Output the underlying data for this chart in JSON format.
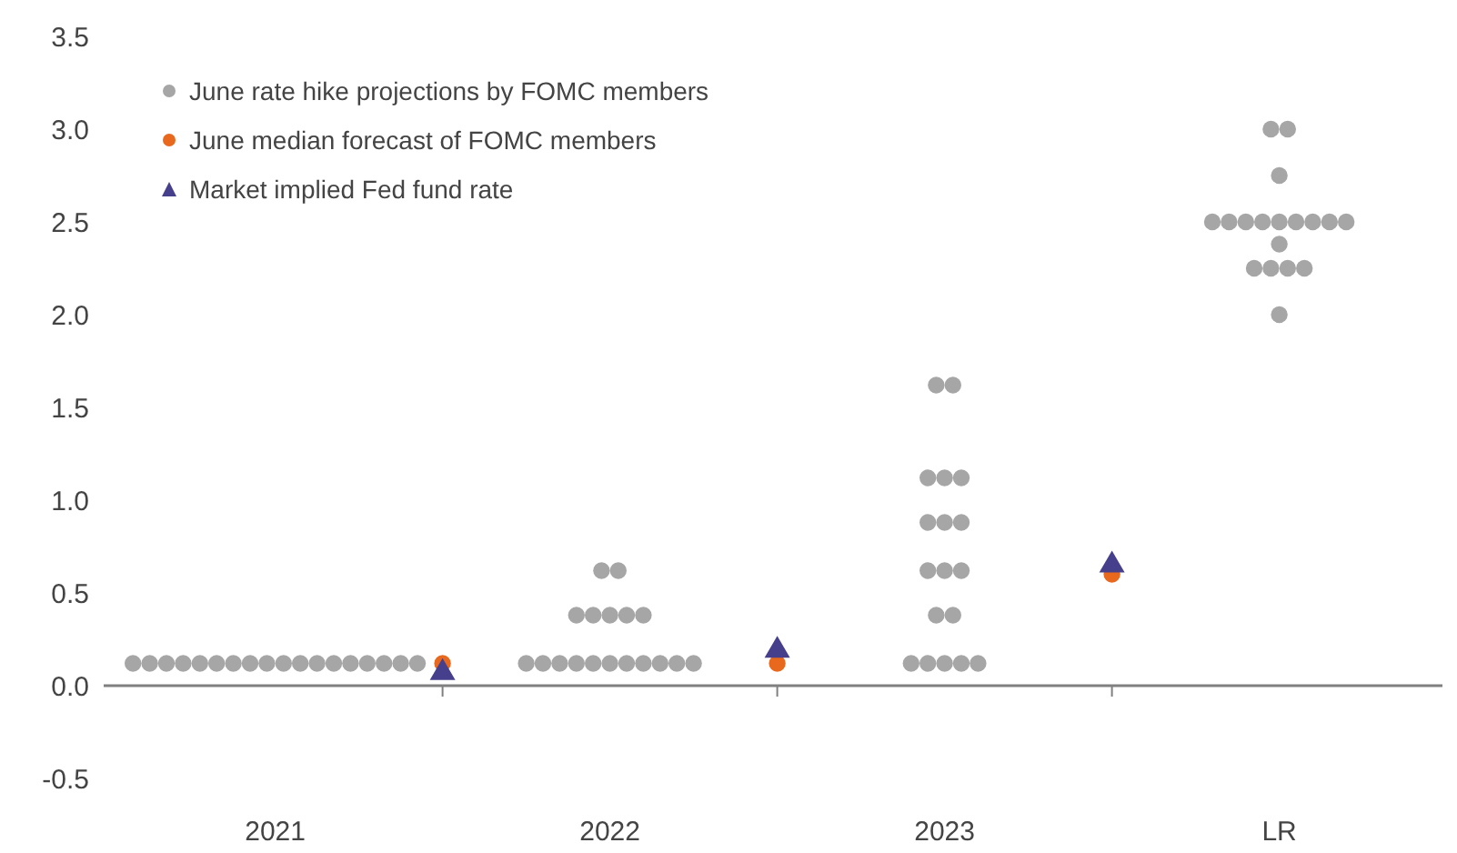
{
  "chart_data": {
    "type": "scatter",
    "categories": [
      null,
      null,
      null,
      null,
      null,
      null,
      null,
      null,
      null,
      null,
      null,
      null,
      null,
      null,
      null,
      null,
      null,
      null,
      null,
      null,
      "2021",
      null,
      null,
      null,
      null,
      null,
      null,
      null,
      null,
      null,
      null,
      null,
      null,
      null,
      null,
      null,
      null,
      null,
      null,
      null,
      null,
      null,
      null,
      null,
      null,
      null,
      null,
      null,
      null,
      null,
      null,
      null,
      null,
      null,
      null,
      null,
      null,
      null,
      null,
      null,
      "2022",
      null,
      null,
      null,
      null,
      null,
      null,
      null,
      null,
      null,
      null,
      null,
      null,
      null,
      null,
      null,
      null,
      null,
      null,
      null,
      null,
      null,
      null,
      null,
      null,
      null,
      null,
      null,
      null,
      null,
      null,
      null,
      null,
      null,
      null,
      null,
      null,
      null,
      null,
      null,
      "2023",
      null,
      null,
      null,
      null,
      null,
      null,
      null,
      null,
      null,
      null,
      null,
      null,
      null,
      null,
      null,
      null,
      null,
      null,
      null,
      null,
      null,
      null,
      null,
      null,
      null,
      null,
      null,
      null,
      null,
      null,
      null,
      null,
      null,
      null,
      null,
      null,
      null,
      null,
      null,
      "LR",
      null,
      null,
      null,
      null,
      null,
      null,
      null,
      null,
      null,
      null,
      null,
      null,
      null,
      null,
      null,
      null,
      null,
      null,
      null
    ],
    "ylim": [
      -0.5,
      3.5
    ],
    "yticks": [
      -0.5,
      {
        "value": 0,
        "label": "0.0"
      },
      0.5,
      {
        "value": 1,
        "label": "1.0"
      },
      1.5,
      {
        "value": 2,
        "label": "2.0"
      },
      2.5,
      {
        "value": 3,
        "label": "3.0"
      },
      3.5
    ],
    "grid": false,
    "legend": "top left",
    "ref_lines": [
      {
        "axis": "y",
        "value": 0,
        "color": "#808080"
      }
    ],
    "series": [
      {
        "name": "June rate hike projections by FOMC members",
        "color": "#a6a6a6",
        "marker": "circle",
        "values": [
          null,
          null,
          null,
          0.12,
          null,
          0.12,
          null,
          0.12,
          null,
          0.12,
          null,
          0.12,
          null,
          0.12,
          null,
          0.12,
          null,
          0.12,
          null,
          0.12,
          null,
          0.12,
          null,
          0.12,
          null,
          0.12,
          null,
          0.12,
          null,
          0.12,
          null,
          0.12,
          null,
          0.12,
          null,
          0.12,
          null,
          0.12,
          null,
          null,
          null,
          null,
          null,
          null,
          null,
          null,
          null,
          null,
          null,
          null,
          0.12,
          null,
          0.12,
          null,
          0.12,
          null,
          0.12,
          null,
          0.12,
          0.62,
          0.12,
          0.62,
          0.12,
          null,
          0.12,
          null,
          0.12,
          null,
          0.12,
          null,
          0.12,
          null,
          null,
          null,
          null,
          null,
          null,
          null,
          null,
          null,
          null,
          null,
          null,
          null,
          null,
          null,
          null,
          null,
          null,
          null,
          null,
          null,
          null,
          null,
          null,
          null,
          0.12,
          null,
          0.12,
          0.38,
          0.12,
          0.38,
          0.12,
          null,
          0.12,
          null,
          null,
          null,
          null,
          null,
          null,
          null,
          null,
          null,
          null,
          null,
          null,
          null,
          null,
          null,
          null,
          null,
          null,
          null,
          null,
          null,
          null,
          null,
          null,
          null,
          null,
          null,
          2.5,
          null,
          2.5,
          null,
          2.5,
          2.25,
          2.5,
          2.25,
          2.0,
          2.25,
          2.5,
          2.25,
          2.5,
          null,
          2.5,
          null,
          2.5,
          null,
          null,
          null,
          null,
          null,
          null,
          null,
          null,
          null,
          null,
          null
        ]
      },
      {
        "color": "#a6a6a6",
        "marker": "circle",
        "values": [
          null,
          null,
          null,
          null,
          null,
          null,
          null,
          null,
          null,
          null,
          null,
          null,
          null,
          null,
          null,
          null,
          null,
          null,
          null,
          null,
          null,
          null,
          null,
          null,
          null,
          null,
          null,
          null,
          null,
          null,
          null,
          null,
          null,
          null,
          null,
          null,
          null,
          null,
          null,
          null,
          null,
          null,
          null,
          null,
          null,
          null,
          null,
          null,
          null,
          null,
          null,
          null,
          null,
          null,
          null,
          null,
          0.38,
          null,
          0.38,
          null,
          0.38,
          null,
          0.38,
          null,
          0.38,
          null,
          null,
          null,
          null,
          null,
          null,
          null,
          null,
          null,
          null,
          null,
          null,
          null,
          null,
          null,
          null,
          null,
          null,
          null,
          null,
          null,
          null,
          null,
          null,
          null,
          null,
          null,
          null,
          null,
          null,
          null,
          null,
          null,
          0.62,
          1.62,
          0.62,
          1.62,
          0.62,
          null,
          null,
          null,
          null,
          null,
          null,
          null,
          null,
          null,
          null,
          null,
          null,
          null,
          null,
          null,
          null,
          null,
          null,
          null,
          null,
          null,
          null,
          null,
          null,
          null,
          null,
          null,
          null,
          null,
          null,
          null,
          null,
          null,
          null,
          null,
          null,
          3.0,
          2.38,
          3.0,
          null,
          null,
          null,
          null,
          null,
          null,
          null,
          null,
          null,
          null,
          null,
          null,
          null,
          null,
          null,
          null,
          null,
          null
        ]
      },
      {
        "color": "#a6a6a6",
        "marker": "circle",
        "values": [
          null,
          null,
          null,
          null,
          null,
          null,
          null,
          null,
          null,
          null,
          null,
          null,
          null,
          null,
          null,
          null,
          null,
          null,
          null,
          null,
          null,
          null,
          null,
          null,
          null,
          null,
          null,
          null,
          null,
          null,
          null,
          null,
          null,
          null,
          null,
          null,
          null,
          null,
          null,
          null,
          null,
          null,
          null,
          null,
          null,
          null,
          null,
          null,
          null,
          null,
          null,
          null,
          null,
          null,
          null,
          null,
          null,
          null,
          null,
          null,
          null,
          null,
          null,
          null,
          null,
          null,
          null,
          null,
          null,
          null,
          null,
          null,
          null,
          null,
          null,
          null,
          null,
          null,
          null,
          null,
          null,
          null,
          null,
          null,
          null,
          null,
          null,
          null,
          null,
          null,
          null,
          null,
          null,
          null,
          null,
          null,
          null,
          null,
          0.88,
          null,
          0.88,
          null,
          0.88,
          null,
          null,
          null,
          null,
          null,
          null,
          null,
          null,
          null,
          null,
          null,
          null,
          null,
          null,
          null,
          null,
          null,
          null,
          null,
          null,
          null,
          null,
          null,
          null,
          null,
          null,
          null,
          null,
          null,
          null,
          null,
          null,
          null,
          null,
          null,
          null,
          null,
          2.5,
          null,
          null,
          null,
          null,
          null,
          null,
          null,
          null,
          null,
          null,
          null,
          null,
          null,
          null,
          null,
          null,
          null,
          null,
          null
        ]
      },
      {
        "color": "#a6a6a6",
        "marker": "circle",
        "values": [
          null,
          null,
          null,
          null,
          null,
          null,
          null,
          null,
          null,
          null,
          null,
          null,
          null,
          null,
          null,
          null,
          null,
          null,
          null,
          null,
          null,
          null,
          null,
          null,
          null,
          null,
          null,
          null,
          null,
          null,
          null,
          null,
          null,
          null,
          null,
          null,
          null,
          null,
          null,
          null,
          null,
          null,
          null,
          null,
          null,
          null,
          null,
          null,
          null,
          null,
          null,
          null,
          null,
          null,
          null,
          null,
          null,
          null,
          null,
          null,
          null,
          null,
          null,
          null,
          null,
          null,
          null,
          null,
          null,
          null,
          null,
          null,
          null,
          null,
          null,
          null,
          null,
          null,
          null,
          null,
          null,
          null,
          null,
          null,
          null,
          null,
          null,
          null,
          null,
          null,
          null,
          null,
          null,
          null,
          null,
          null,
          null,
          null,
          1.12,
          null,
          1.12,
          null,
          1.12,
          null,
          null,
          null,
          null,
          null,
          null,
          null,
          null,
          null,
          null,
          null,
          null,
          null,
          null,
          null,
          null,
          null,
          null,
          null,
          null,
          null,
          null,
          null,
          null,
          null,
          null,
          null,
          null,
          null,
          null,
          null,
          null,
          null,
          null,
          null,
          null,
          null,
          2.75,
          null,
          null,
          null,
          null,
          null,
          null,
          null,
          null,
          null,
          null,
          null,
          null,
          null,
          null,
          null,
          null,
          null,
          null,
          null
        ]
      },
      {
        "name": "June median forecast of FOMC members",
        "color": "#e8681e",
        "marker": "circle",
        "values": [
          null,
          null,
          null,
          null,
          null,
          null,
          null,
          null,
          null,
          null,
          null,
          null,
          null,
          null,
          null,
          null,
          null,
          null,
          null,
          null,
          null,
          null,
          null,
          null,
          null,
          null,
          null,
          null,
          null,
          null,
          null,
          null,
          null,
          null,
          null,
          null,
          null,
          null,
          null,
          null,
          0.12,
          null,
          null,
          null,
          null,
          null,
          null,
          null,
          null,
          null,
          null,
          null,
          null,
          null,
          null,
          null,
          null,
          null,
          null,
          null,
          null,
          null,
          null,
          null,
          null,
          null,
          null,
          null,
          null,
          null,
          null,
          null,
          null,
          null,
          null,
          null,
          null,
          null,
          null,
          null,
          0.12,
          null,
          null,
          null,
          null,
          null,
          null,
          null,
          null,
          null,
          null,
          null,
          null,
          null,
          null,
          null,
          null,
          null,
          null,
          null,
          null,
          null,
          null,
          null,
          null,
          null,
          null,
          null,
          null,
          null,
          null,
          null,
          null,
          null,
          null,
          null,
          null,
          null,
          null,
          null,
          0.6,
          null,
          null,
          null,
          null,
          null,
          null,
          null,
          null,
          null,
          null,
          null,
          null,
          null,
          null,
          null,
          null,
          null,
          null,
          null,
          null,
          null,
          null,
          null,
          null,
          null,
          null,
          null,
          null,
          null,
          null,
          null,
          null,
          null,
          null,
          null,
          null,
          null,
          null,
          null
        ]
      },
      {
        "name": "Market implied Fed fund rate",
        "color": "#46408c",
        "marker": "triangle",
        "values": [
          null,
          null,
          null,
          null,
          null,
          null,
          null,
          null,
          null,
          null,
          null,
          null,
          null,
          null,
          null,
          null,
          null,
          null,
          null,
          null,
          null,
          null,
          null,
          null,
          null,
          null,
          null,
          null,
          null,
          null,
          null,
          null,
          null,
          null,
          null,
          null,
          null,
          null,
          null,
          null,
          0.05,
          null,
          null,
          null,
          null,
          null,
          null,
          null,
          null,
          null,
          null,
          null,
          null,
          null,
          null,
          null,
          null,
          null,
          null,
          null,
          null,
          null,
          null,
          null,
          null,
          null,
          null,
          null,
          null,
          null,
          null,
          null,
          null,
          null,
          null,
          null,
          null,
          null,
          null,
          null,
          0.17,
          null,
          null,
          null,
          null,
          null,
          null,
          null,
          null,
          null,
          null,
          null,
          null,
          null,
          null,
          null,
          null,
          null,
          null,
          null,
          null,
          null,
          null,
          null,
          null,
          null,
          null,
          null,
          null,
          null,
          null,
          null,
          null,
          null,
          null,
          null,
          null,
          null,
          null,
          null,
          0.63,
          null,
          null,
          null,
          null,
          null,
          null,
          null,
          null,
          null,
          null,
          null,
          null,
          null,
          null,
          null,
          null,
          null,
          null,
          null,
          null,
          null,
          null,
          null,
          null,
          null,
          null,
          null,
          null,
          null,
          null,
          null,
          null,
          null,
          null,
          null,
          null,
          null,
          null,
          null
        ]
      }
    ]
  }
}
